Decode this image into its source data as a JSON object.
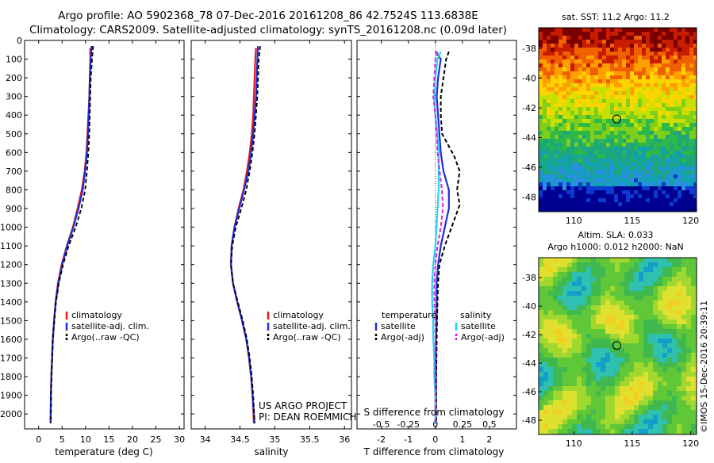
{
  "header": {
    "line1": "Argo profile: AO 5902368_78 07-Dec-2016 20161208_86 42.7524S 113.6838E",
    "line2": "Climatology: CARS2009. Satellite-adjusted climatology: synTS_20161208.nc (0.09d later)"
  },
  "credits": {
    "project": "US ARGO PROJECT",
    "pi": "PI: DEAN ROEMMICH",
    "stamp": "©IMOS 15-Dec-2016 20:39:11"
  },
  "colors": {
    "climatology": "#e41a1c",
    "satellite": "#1f2fd6",
    "argo": "#000000",
    "satellite_sal": "#22d3ee",
    "argo_sal": "#e11de1"
  },
  "depth_ticks": [
    "0",
    "100",
    "200",
    "300",
    "400",
    "500",
    "600",
    "700",
    "800",
    "900",
    "1000",
    "1100",
    "1200",
    "1300",
    "1400",
    "1500",
    "1600",
    "1700",
    "1800",
    "1900",
    "2000"
  ],
  "chart_data": [
    {
      "type": "line",
      "id": "temperature",
      "xlabel": "temperature (deg C)",
      "xticks": [
        "0",
        "5",
        "10",
        "15",
        "20",
        "25",
        "30"
      ],
      "xlim": [
        -3,
        31
      ],
      "ylim": [
        2080,
        0
      ],
      "legend": {
        "position": "lower-left",
        "entries": [
          "climatology",
          "satellite-adj. clim.",
          "Argo(..raw -QC)"
        ]
      },
      "series": [
        {
          "name": "climatology",
          "style": "solid",
          "color": "#e41a1c",
          "x": [
            11.0,
            11.0,
            10.9,
            10.8,
            10.6,
            10.4,
            10.2,
            9.8,
            9.2,
            8.3,
            7.3,
            6.0,
            4.9,
            4.1,
            3.6,
            3.3,
            3.0,
            2.85,
            2.7,
            2.6,
            2.55
          ],
          "y": [
            40,
            100,
            200,
            300,
            400,
            500,
            600,
            700,
            800,
            900,
            1000,
            1100,
            1200,
            1300,
            1400,
            1500,
            1600,
            1700,
            1800,
            1900,
            2050
          ]
        },
        {
          "name": "satellite-adj. clim.",
          "style": "solid",
          "color": "#1f2fd6",
          "x": [
            11.3,
            11.1,
            10.9,
            10.8,
            10.7,
            10.5,
            10.3,
            9.9,
            9.4,
            8.5,
            7.4,
            6.1,
            5.0,
            4.2,
            3.65,
            3.3,
            3.0,
            2.85,
            2.7,
            2.6,
            2.55
          ],
          "y": [
            30,
            100,
            200,
            300,
            400,
            500,
            600,
            700,
            800,
            900,
            1000,
            1100,
            1200,
            1300,
            1400,
            1500,
            1600,
            1700,
            1800,
            1900,
            2050
          ]
        },
        {
          "name": "Argo(..raw -QC)",
          "style": "dashed",
          "color": "#000000",
          "x": [
            11.6,
            11.4,
            11.1,
            11.0,
            10.9,
            10.8,
            10.6,
            10.3,
            9.9,
            9.1,
            7.9,
            6.4,
            5.2,
            4.3,
            3.7,
            3.35,
            3.05,
            2.9,
            2.75,
            2.65,
            2.6
          ],
          "y": [
            30,
            100,
            200,
            300,
            400,
            500,
            600,
            700,
            800,
            900,
            1000,
            1100,
            1200,
            1300,
            1400,
            1500,
            1600,
            1700,
            1800,
            1900,
            2050
          ]
        }
      ]
    },
    {
      "type": "line",
      "id": "salinity",
      "xlabel": "salinity",
      "xticks": [
        "34",
        "34.5",
        "35",
        "35.5",
        "36"
      ],
      "xlim": [
        33.8,
        36.1
      ],
      "ylim": [
        2080,
        0
      ],
      "legend": {
        "position": "lower-left",
        "entries": [
          "climatology",
          "satellite-adj. clim.",
          "Argo(..raw -QC)"
        ]
      },
      "series": [
        {
          "name": "climatology",
          "style": "solid",
          "color": "#e41a1c",
          "x": [
            34.73,
            34.72,
            34.71,
            34.7,
            34.69,
            34.67,
            34.64,
            34.6,
            34.55,
            34.48,
            34.42,
            34.38,
            34.37,
            34.4,
            34.46,
            34.53,
            34.59,
            34.63,
            34.66,
            34.68,
            34.7
          ],
          "y": [
            40,
            100,
            200,
            300,
            400,
            500,
            600,
            700,
            800,
            900,
            1000,
            1100,
            1200,
            1300,
            1400,
            1500,
            1600,
            1700,
            1800,
            1900,
            2050
          ]
        },
        {
          "name": "satellite-adj. clim.",
          "style": "solid",
          "color": "#1f2fd6",
          "x": [
            34.76,
            34.75,
            34.74,
            34.73,
            34.71,
            34.69,
            34.66,
            34.62,
            34.56,
            34.49,
            34.42,
            34.38,
            34.37,
            34.4,
            34.46,
            34.53,
            34.59,
            34.63,
            34.66,
            34.68,
            34.71
          ],
          "y": [
            30,
            100,
            200,
            300,
            400,
            500,
            600,
            700,
            800,
            900,
            1000,
            1100,
            1200,
            1300,
            1400,
            1500,
            1600,
            1700,
            1800,
            1900,
            2050
          ]
        },
        {
          "name": "Argo(..raw -QC)",
          "style": "dashed",
          "color": "#000000",
          "x": [
            34.79,
            34.77,
            34.76,
            34.75,
            34.73,
            34.71,
            34.68,
            34.64,
            34.59,
            34.52,
            34.44,
            34.39,
            34.37,
            34.4,
            34.47,
            34.54,
            34.6,
            34.64,
            34.67,
            34.69,
            34.71
          ],
          "y": [
            30,
            100,
            200,
            300,
            400,
            500,
            600,
            700,
            800,
            900,
            1000,
            1100,
            1200,
            1300,
            1400,
            1500,
            1600,
            1700,
            1800,
            1900,
            2050
          ]
        }
      ]
    },
    {
      "type": "line",
      "id": "difference",
      "xlabel": "T difference from climatology",
      "xlabel_top": "S difference from climatology",
      "xticks": [
        "-2",
        "-1",
        "0",
        "1",
        "2"
      ],
      "xticks_top": [
        "-0.5",
        "-0.25",
        "0",
        "0.25",
        "0.5"
      ],
      "xlim": [
        -2.9,
        3.0
      ],
      "ylim": [
        2080,
        0
      ],
      "legend": {
        "position": "lower",
        "left_title": "temperature",
        "right_title": "salinity",
        "entries": [
          "satellite",
          "Argo(-adj)",
          "satellite",
          "Argo(-adj)"
        ]
      },
      "series": [
        {
          "name": "temperature satellite",
          "style": "solid",
          "color": "#1f2fd6",
          "x": [
            0.0,
            0.2,
            0.1,
            0.05,
            0.1,
            0.15,
            0.2,
            0.3,
            0.5,
            0.5,
            0.35,
            0.2,
            0.1,
            0.05,
            0.05,
            0.05,
            0.02,
            0.02,
            0.02,
            0.02,
            0.02
          ],
          "y": [
            60,
            100,
            200,
            300,
            400,
            500,
            600,
            700,
            800,
            900,
            1000,
            1100,
            1200,
            1300,
            1400,
            1500,
            1600,
            1700,
            1800,
            1900,
            2050
          ]
        },
        {
          "name": "temperature Argo(-adj)",
          "style": "dashed",
          "color": "#000000",
          "x": [
            0.5,
            0.4,
            0.3,
            0.2,
            0.2,
            0.25,
            0.7,
            0.9,
            0.8,
            0.9,
            0.6,
            0.35,
            0.15,
            0.1,
            0.08,
            0.06,
            0.05,
            0.04,
            0.03,
            0.03,
            0.03
          ],
          "y": [
            60,
            100,
            200,
            300,
            400,
            500,
            620,
            700,
            800,
            880,
            1000,
            1100,
            1200,
            1300,
            1400,
            1500,
            1600,
            1700,
            1800,
            1900,
            2050
          ]
        },
        {
          "name": "salinity satellite",
          "style": "solid",
          "color": "#22d3ee",
          "x": [
            0.05,
            0.02,
            0.0,
            -0.01,
            0.0,
            0.02,
            0.03,
            0.03,
            0.03,
            0.02,
            0.01,
            0.0,
            -0.02,
            -0.03,
            -0.03,
            -0.02,
            -0.02,
            -0.01,
            -0.01,
            0.0,
            0.0
          ],
          "y": [
            60,
            100,
            200,
            300,
            400,
            500,
            600,
            700,
            800,
            900,
            1000,
            1100,
            1200,
            1300,
            1400,
            1500,
            1600,
            1700,
            1800,
            1900,
            2050
          ]
        },
        {
          "name": "salinity Argo(-adj)",
          "style": "dashed",
          "color": "#e11de1",
          "x": [
            0.02,
            0.0,
            -0.01,
            -0.02,
            0.0,
            0.01,
            0.02,
            0.04,
            0.06,
            0.07,
            0.05,
            0.02,
            0.0,
            -0.01,
            -0.01,
            0.0,
            0.0,
            0.0,
            0.0,
            0.0,
            0.0
          ],
          "y": [
            60,
            100,
            200,
            300,
            400,
            500,
            600,
            700,
            800,
            900,
            1000,
            1100,
            1200,
            1300,
            1400,
            1500,
            1600,
            1700,
            1800,
            1900,
            2050
          ]
        }
      ]
    },
    {
      "type": "heatmap",
      "id": "sst_map",
      "title": "sat. SST: 11.2 Argo: 11.2",
      "xticks": [
        "110",
        "115",
        "120"
      ],
      "yticks": [
        "-38",
        "-40",
        "-42",
        "-44",
        "-46",
        "-48"
      ],
      "xlim": [
        107,
        120.5
      ],
      "ylim": [
        -49,
        -36.6
      ],
      "marker": {
        "lon": 113.68,
        "lat": -42.75
      },
      "colormap": [
        "#7a0000",
        "#c81c00",
        "#f06000",
        "#ffa000",
        "#ffd400",
        "#c8e000",
        "#7fcf1a",
        "#2eb84a",
        "#1ea878",
        "#10a0b0",
        "#2a8fe0",
        "#0a3ad0",
        "#000090"
      ]
    },
    {
      "type": "heatmap",
      "id": "sla_map",
      "title": "Altim. SLA: 0.033",
      "subtitle": "Argo h1000: 0.012 h2000: NaN",
      "xticks": [
        "110",
        "115",
        "120"
      ],
      "yticks": [
        "-38",
        "-40",
        "-42",
        "-44",
        "-46",
        "-48"
      ],
      "xlim": [
        107,
        120.5
      ],
      "ylim": [
        -49,
        -36.6
      ],
      "marker": {
        "lon": 113.68,
        "lat": -42.75
      },
      "colormap": [
        "#10a0c8",
        "#30c0b0",
        "#40b850",
        "#60c838",
        "#a0d830",
        "#e0e030",
        "#f0d020"
      ]
    }
  ]
}
